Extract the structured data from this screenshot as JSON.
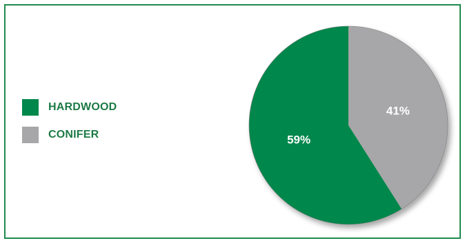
{
  "chart_data": {
    "type": "pie",
    "title": "",
    "categories": [
      "HARDWOOD",
      "CONIFER"
    ],
    "values": [
      59,
      41
    ],
    "labels": [
      "59%",
      "41%"
    ],
    "colors": [
      "#00874b",
      "#a7a6a8"
    ],
    "legend_position": "left",
    "start_angle": "12 o'clock",
    "direction": "clockwise-from-conifer"
  },
  "legend": {
    "items": [
      {
        "label": "HARDWOOD",
        "color": "#00874b"
      },
      {
        "label": "CONIFER",
        "color": "#a7a6a8"
      }
    ],
    "text_color": "#1c7a45"
  },
  "frame": {
    "border_color": "#1f8a4c"
  }
}
